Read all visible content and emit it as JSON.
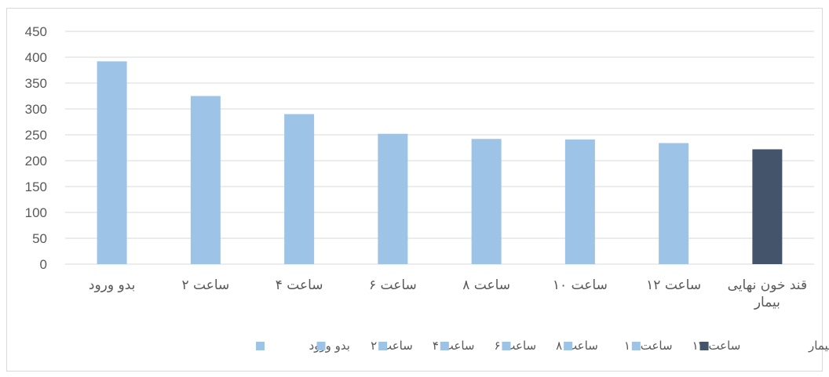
{
  "chart_data": {
    "type": "bar",
    "title": "",
    "xlabel": "",
    "ylabel": "",
    "ylim": [
      0,
      450
    ],
    "yticks": [
      0,
      50,
      100,
      150,
      200,
      250,
      300,
      350,
      400,
      450
    ],
    "grid": true,
    "legend_position": "bottom",
    "categories": [
      [
        "بدو ورود"
      ],
      [
        "ساعت ۲"
      ],
      [
        "ساعت ۴"
      ],
      [
        "ساعت ۶"
      ],
      [
        "ساعت ۸"
      ],
      [
        "ساعت ۱۰"
      ],
      [
        "ساعت ۱۲"
      ],
      [
        "قند خون نهایی",
        "بیمار"
      ]
    ],
    "values": [
      392,
      325,
      290,
      252,
      242,
      241,
      234,
      222
    ],
    "colors": [
      "#9dc3e6",
      "#9dc3e6",
      "#9dc3e6",
      "#9dc3e6",
      "#9dc3e6",
      "#9dc3e6",
      "#9dc3e6",
      "#44546a"
    ],
    "legend": [
      {
        "label": "بدو ورود",
        "color": "#9dc3e6"
      },
      {
        "label": "ساعت ۲",
        "color": "#9dc3e6"
      },
      {
        "label": "ساعت ۴",
        "color": "#9dc3e6"
      },
      {
        "label": "ساعت ۶",
        "color": "#9dc3e6"
      },
      {
        "label": "ساعت ۸",
        "color": "#9dc3e6"
      },
      {
        "label": "ساعت ۱۰",
        "color": "#9dc3e6"
      },
      {
        "label": "ساعت ۱۲",
        "color": "#9dc3e6"
      },
      {
        "label": "قند خون نهایی بیمار",
        "color": "#44546a"
      }
    ]
  }
}
